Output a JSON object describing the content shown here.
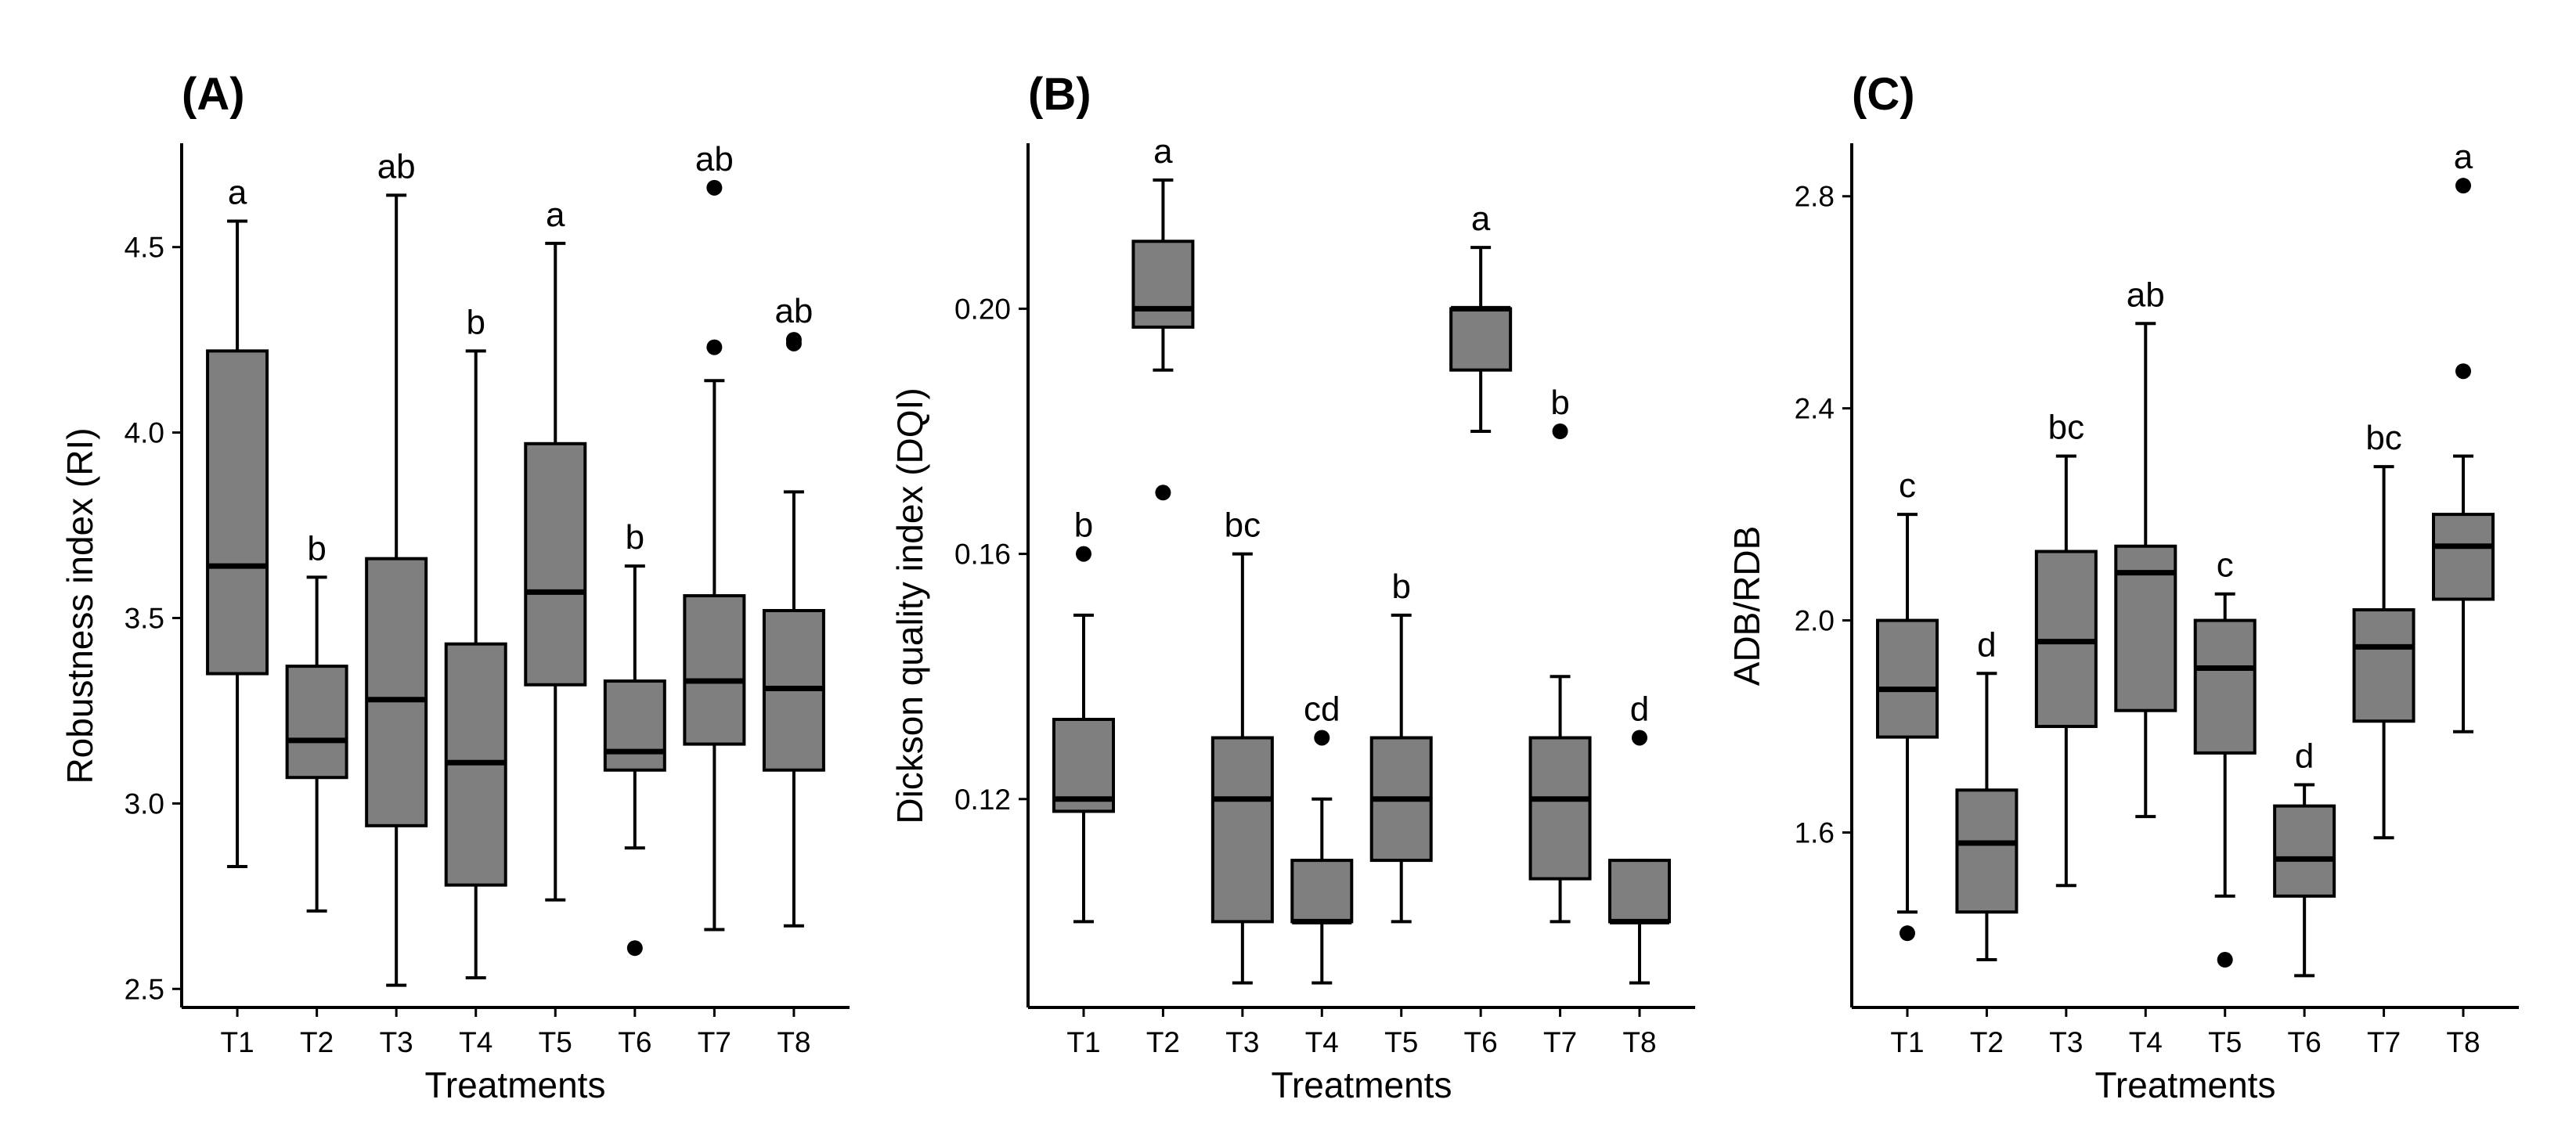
{
  "chart_data": [
    {
      "type": "box",
      "panel": "(A)",
      "xlabel": "Treatments",
      "ylabel": "Robustness index (RI)",
      "ylim": [
        2.45,
        4.78
      ],
      "yticks": [
        2.5,
        3.0,
        3.5,
        4.0,
        4.5
      ],
      "categories": [
        "T1",
        "T2",
        "T3",
        "T4",
        "T5",
        "T6",
        "T7",
        "T8"
      ],
      "boxes": [
        {
          "min": 2.83,
          "q1": 3.35,
          "median": 3.64,
          "q3": 4.22,
          "max": 4.57,
          "outliers": [],
          "letter": "a"
        },
        {
          "min": 2.71,
          "q1": 3.07,
          "median": 3.17,
          "q3": 3.37,
          "max": 3.61,
          "outliers": [],
          "letter": "b"
        },
        {
          "min": 2.51,
          "q1": 2.94,
          "median": 3.28,
          "q3": 3.66,
          "max": 4.64,
          "outliers": [],
          "letter": "ab"
        },
        {
          "min": 2.53,
          "q1": 2.78,
          "median": 3.11,
          "q3": 3.43,
          "max": 4.22,
          "outliers": [],
          "letter": "b"
        },
        {
          "min": 2.74,
          "q1": 3.32,
          "median": 3.57,
          "q3": 3.97,
          "max": 4.51,
          "outliers": [],
          "letter": "a"
        },
        {
          "min": 2.88,
          "q1": 3.09,
          "median": 3.14,
          "q3": 3.33,
          "max": 3.64,
          "outliers": [
            2.61
          ],
          "letter": "b"
        },
        {
          "min": 2.66,
          "q1": 3.16,
          "median": 3.33,
          "q3": 3.56,
          "max": 4.14,
          "outliers": [
            4.23,
            4.66
          ],
          "letter": "ab"
        },
        {
          "min": 2.67,
          "q1": 3.09,
          "median": 3.31,
          "q3": 3.52,
          "max": 3.84,
          "outliers": [
            4.24,
            4.25
          ],
          "letter": "ab"
        }
      ]
    },
    {
      "type": "box",
      "panel": "(B)",
      "xlabel": "Treatments",
      "ylabel": "Dickson quality index (DQI)",
      "ylim": [
        0.086,
        0.227
      ],
      "yticks": [
        0.12,
        0.16,
        0.2
      ],
      "ytick_labels": [
        "0.12",
        "0.16",
        "0.20"
      ],
      "categories": [
        "T1",
        "T2",
        "T3",
        "T4",
        "T5",
        "T6",
        "T7",
        "T8"
      ],
      "boxes": [
        {
          "min": 0.1,
          "q1": 0.118,
          "median": 0.12,
          "q3": 0.133,
          "max": 0.15,
          "outliers": [
            0.16
          ],
          "letter": "b"
        },
        {
          "min": 0.19,
          "q1": 0.197,
          "median": 0.2,
          "q3": 0.211,
          "max": 0.221,
          "outliers": [
            0.17
          ],
          "letter": "a"
        },
        {
          "min": 0.09,
          "q1": 0.1,
          "median": 0.12,
          "q3": 0.13,
          "max": 0.16,
          "outliers": [],
          "letter": "bc"
        },
        {
          "min": 0.09,
          "q1": 0.1,
          "median": 0.1,
          "q3": 0.11,
          "max": 0.12,
          "outliers": [
            0.13
          ],
          "letter": "cd"
        },
        {
          "min": 0.1,
          "q1": 0.11,
          "median": 0.12,
          "q3": 0.13,
          "max": 0.15,
          "outliers": [],
          "letter": "b"
        },
        {
          "min": 0.18,
          "q1": 0.19,
          "median": 0.2,
          "q3": 0.2,
          "max": 0.21,
          "outliers": [],
          "letter": "a"
        },
        {
          "min": 0.1,
          "q1": 0.107,
          "median": 0.12,
          "q3": 0.13,
          "max": 0.14,
          "outliers": [
            0.18
          ],
          "letter": "b"
        },
        {
          "min": 0.09,
          "q1": 0.1,
          "median": 0.1,
          "q3": 0.11,
          "max": 0.11,
          "outliers": [
            0.13
          ],
          "letter": "d"
        }
      ]
    },
    {
      "type": "box",
      "panel": "(C)",
      "xlabel": "Treatments",
      "ylabel": "ADB/RDB",
      "ylim": [
        1.27,
        2.9
      ],
      "yticks": [
        1.6,
        2.0,
        2.4,
        2.8
      ],
      "categories": [
        "T1",
        "T2",
        "T3",
        "T4",
        "T5",
        "T6",
        "T7",
        "T8"
      ],
      "boxes": [
        {
          "min": 1.45,
          "q1": 1.78,
          "median": 1.87,
          "q3": 2.0,
          "max": 2.2,
          "outliers": [
            1.41
          ],
          "letter": "c"
        },
        {
          "min": 1.36,
          "q1": 1.45,
          "median": 1.58,
          "q3": 1.68,
          "max": 1.9,
          "outliers": [],
          "letter": "d"
        },
        {
          "min": 1.5,
          "q1": 1.8,
          "median": 1.96,
          "q3": 2.13,
          "max": 2.31,
          "outliers": [],
          "letter": "bc"
        },
        {
          "min": 1.63,
          "q1": 1.83,
          "median": 2.09,
          "q3": 2.14,
          "max": 2.56,
          "outliers": [],
          "letter": "ab"
        },
        {
          "min": 1.48,
          "q1": 1.75,
          "median": 1.91,
          "q3": 2.0,
          "max": 2.05,
          "outliers": [
            1.36
          ],
          "letter": "c"
        },
        {
          "min": 1.33,
          "q1": 1.48,
          "median": 1.55,
          "q3": 1.65,
          "max": 1.69,
          "outliers": [],
          "letter": "d"
        },
        {
          "min": 1.59,
          "q1": 1.81,
          "median": 1.95,
          "q3": 2.02,
          "max": 2.29,
          "outliers": [],
          "letter": "bc"
        },
        {
          "min": 1.79,
          "q1": 2.04,
          "median": 2.14,
          "q3": 2.2,
          "max": 2.31,
          "outliers": [
            2.47,
            2.82
          ],
          "letter": "a"
        }
      ]
    }
  ],
  "colors": {
    "box_fill": "#7f7f7f",
    "stroke": "#000000"
  }
}
